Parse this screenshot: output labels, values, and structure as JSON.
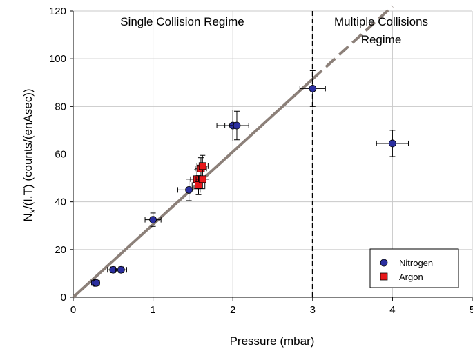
{
  "chart_data": {
    "type": "scatter",
    "xlabel": "Pressure (mbar)",
    "ylabel_main": "N",
    "ylabel_sub": "x",
    "ylabel_rest": "/(I.T) (counts/(enAsec))",
    "xlim": [
      0,
      5
    ],
    "ylim": [
      0,
      120
    ],
    "x_ticks": [
      0,
      1,
      2,
      3,
      4,
      5
    ],
    "y_ticks": [
      0,
      20,
      40,
      60,
      80,
      100,
      120
    ],
    "grid": true,
    "regions": [
      {
        "label": "Single Collision Regime"
      },
      {
        "label": "Multiple Collisions",
        "label2": "Regime"
      }
    ],
    "divider_x": 3,
    "fit_line": {
      "slope": 30.5,
      "solid_x": [
        0,
        3
      ],
      "dashed_x": [
        3,
        4
      ]
    },
    "legend_position": "bottom-right",
    "series": [
      {
        "name": "Nitrogen",
        "marker": "circle",
        "color": "#2b2fa0",
        "points": [
          {
            "x": 0.27,
            "y": 6,
            "xerr": 0.04,
            "yerr": 1
          },
          {
            "x": 0.29,
            "y": 6,
            "xerr": 0.04,
            "yerr": 1
          },
          {
            "x": 0.5,
            "y": 11.5,
            "xerr": 0.07,
            "yerr": 1.2
          },
          {
            "x": 0.6,
            "y": 11.5,
            "xerr": 0.07,
            "yerr": 1.2
          },
          {
            "x": 1.0,
            "y": 32.5,
            "xerr": 0.1,
            "yerr": 2.8
          },
          {
            "x": 1.45,
            "y": 45,
            "xerr": 0.14,
            "yerr": 4.5
          },
          {
            "x": 2.0,
            "y": 72,
            "xerr": 0.2,
            "yerr": 6.5
          },
          {
            "x": 2.05,
            "y": 72,
            "xerr": 0.15,
            "yerr": 6
          },
          {
            "x": 3.0,
            "y": 87.5,
            "xerr": 0.16,
            "yerr": 7.5
          },
          {
            "x": 4.0,
            "y": 64.5,
            "xerr": 0.2,
            "yerr": 5.5
          }
        ]
      },
      {
        "name": "Argon",
        "marker": "square",
        "color": "#e8181b",
        "points": [
          {
            "x": 1.55,
            "y": 49.5,
            "xerr": 0.08,
            "yerr": 4
          },
          {
            "x": 1.57,
            "y": 47,
            "xerr": 0.08,
            "yerr": 4
          },
          {
            "x": 1.6,
            "y": 54,
            "xerr": 0.07,
            "yerr": 4.5
          },
          {
            "x": 1.62,
            "y": 55,
            "xerr": 0.07,
            "yerr": 4.5
          },
          {
            "x": 1.62,
            "y": 49.5,
            "xerr": 0.08,
            "yerr": 4
          }
        ]
      }
    ]
  }
}
